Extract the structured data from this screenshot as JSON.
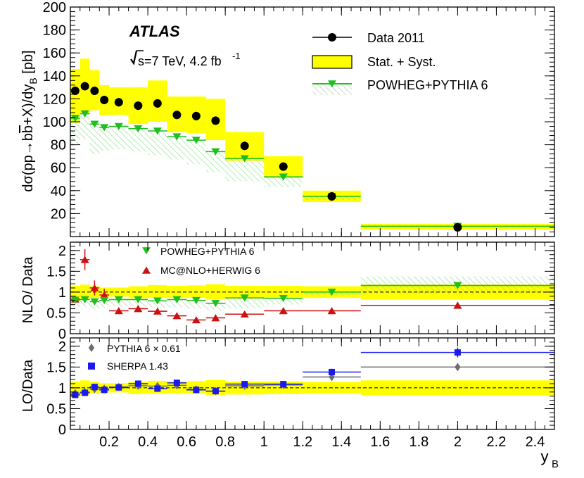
{
  "chart_data": {
    "type": "scatter",
    "x_axis": {
      "label": "y",
      "label_sub": "B",
      "range": [
        0,
        2.5
      ],
      "ticks": [
        0.2,
        0.4,
        0.6,
        0.8,
        1,
        1.2,
        1.4,
        1.6,
        1.8,
        2,
        2.2,
        2.4
      ],
      "tick_labels": [
        "0.2",
        "0.4",
        "0.6",
        "0.8",
        "1",
        "1.2",
        "1.4",
        "1.6",
        "1.8",
        "2",
        "2.2",
        "2.4"
      ]
    },
    "bins": [
      [
        0,
        0.05
      ],
      [
        0.05,
        0.1
      ],
      [
        0.1,
        0.15
      ],
      [
        0.15,
        0.2
      ],
      [
        0.2,
        0.3
      ],
      [
        0.3,
        0.4
      ],
      [
        0.4,
        0.5
      ],
      [
        0.5,
        0.6
      ],
      [
        0.6,
        0.7
      ],
      [
        0.7,
        0.8
      ],
      [
        0.8,
        1.0
      ],
      [
        1.0,
        1.2
      ],
      [
        1.2,
        1.5
      ],
      [
        1.5,
        2.5
      ]
    ],
    "panels": [
      {
        "id": "main",
        "ylabel": "dσ(pp→bb̄+X)/dy [pb]",
        "ylabel_parts": [
          "dσ(pp→b",
          "b",
          "+X)/dy",
          "B",
          " [pb]"
        ],
        "ylim": [
          0,
          200
        ],
        "yticks": [
          20,
          40,
          60,
          80,
          100,
          120,
          140,
          160,
          180,
          200
        ],
        "ytick_labels": [
          "20",
          "40",
          "60",
          "80",
          "100",
          "120",
          "140",
          "160",
          "180",
          "200"
        ],
        "experiment": "ATLAS",
        "energy_label": "s=7 TeV, 4.2 fb",
        "energy_sup": "-1",
        "legend": [
          "Data 2011",
          "Stat. + Syst.",
          "POWHEG+PYTHIA 6"
        ],
        "data": [
          127,
          131,
          127,
          119,
          117,
          114,
          116,
          106,
          105,
          101,
          79,
          61,
          35,
          8
        ],
        "band_low": [
          99,
          107,
          110,
          106,
          106,
          98,
          100,
          91,
          90,
          84,
          66,
          51,
          30,
          6
        ],
        "band_high": [
          146,
          155,
          145,
          132,
          130,
          130,
          136,
          122,
          122,
          120,
          91,
          70,
          40,
          11
        ],
        "powheg": [
          103,
          107,
          98,
          95,
          96,
          94,
          92,
          87,
          84,
          74,
          68,
          52,
          35,
          9
        ],
        "powheg_low": [
          80,
          85,
          72,
          75,
          76,
          74,
          71,
          67,
          63,
          56,
          48,
          43,
          32,
          8
        ],
        "powheg_high": [
          104,
          108,
          100,
          97,
          97,
          95,
          93,
          88,
          85,
          75,
          69,
          53,
          36,
          10
        ]
      },
      {
        "id": "nlo",
        "ylabel": "NLO/ Data",
        "ylim": [
          0,
          2.2
        ],
        "yticks": [
          0,
          0.5,
          1,
          1.5,
          2
        ],
        "ytick_labels": [
          "0",
          "0.5",
          "1",
          "1.5",
          "2"
        ],
        "legend": [
          "POWHEG+PYTHIA 6",
          "MC@NLO+HERWIG 6"
        ],
        "band_low": [
          0.78,
          0.82,
          0.86,
          0.89,
          0.89,
          0.85,
          0.86,
          0.86,
          0.86,
          0.83,
          0.84,
          0.85,
          0.86,
          0.82
        ],
        "band_high": [
          1.15,
          1.18,
          1.14,
          1.11,
          1.11,
          1.14,
          1.17,
          1.15,
          1.16,
          1.19,
          1.15,
          1.15,
          1.14,
          1.18
        ],
        "powheg": [
          0.81,
          0.82,
          0.77,
          0.8,
          0.82,
          0.82,
          0.79,
          0.82,
          0.8,
          0.73,
          0.86,
          0.85,
          1.0,
          1.16
        ],
        "powheg_low": [
          0.62,
          0.65,
          0.57,
          0.63,
          0.65,
          0.65,
          0.61,
          0.63,
          0.6,
          0.56,
          0.61,
          0.7,
          0.92,
          0.96
        ],
        "powheg_high": [
          0.82,
          0.83,
          0.79,
          0.82,
          0.83,
          0.84,
          0.81,
          0.84,
          0.82,
          0.75,
          0.88,
          0.87,
          1.02,
          1.38
        ],
        "mcnlo": [
          0.83,
          1.78,
          1.1,
          0.93,
          0.55,
          0.6,
          0.54,
          0.43,
          0.33,
          0.38,
          0.47,
          0.55,
          0.55,
          0.68
        ],
        "mcnlo_err": [
          0.08,
          0.25,
          0.18,
          0.15,
          0.08,
          0.08,
          0.07,
          0.06,
          0.05,
          0.06,
          0.05,
          0.05,
          0.04,
          0.06
        ]
      },
      {
        "id": "lo",
        "ylabel": "LO/Data",
        "ylim": [
          0,
          2.2
        ],
        "yticks": [
          0,
          0.5,
          1,
          1.5,
          2
        ],
        "ytick_labels": [
          "0",
          "0.5",
          "1",
          "1.5",
          "2"
        ],
        "legend": [
          "PYTHIA 6 × 0.61",
          "SHERPA 1.43"
        ],
        "band_low": [
          0.78,
          0.82,
          0.86,
          0.89,
          0.89,
          0.85,
          0.86,
          0.86,
          0.86,
          0.83,
          0.84,
          0.85,
          0.86,
          0.82
        ],
        "band_high": [
          1.15,
          1.18,
          1.14,
          1.11,
          1.11,
          1.14,
          1.17,
          1.15,
          1.16,
          1.19,
          1.15,
          1.15,
          1.14,
          1.18
        ],
        "pythia": [
          0.87,
          0.9,
          0.97,
          0.98,
          1.02,
          1.05,
          1.04,
          1.06,
          0.96,
          0.92,
          1.05,
          1.07,
          1.26,
          1.5
        ],
        "pythia_err": [
          0.05,
          0.05,
          0.05,
          0.05,
          0.04,
          0.04,
          0.04,
          0.04,
          0.04,
          0.04,
          0.04,
          0.04,
          0.04,
          0.04
        ],
        "sherpa": [
          0.83,
          0.88,
          1.02,
          0.95,
          1.01,
          1.1,
          0.98,
          1.12,
          0.95,
          0.92,
          1.09,
          1.09,
          1.38,
          1.85
        ],
        "sherpa_err": [
          0.08,
          0.08,
          0.08,
          0.08,
          0.06,
          0.07,
          0.07,
          0.07,
          0.06,
          0.06,
          0.06,
          0.06,
          0.08,
          0.12
        ]
      }
    ],
    "colors": {
      "data": "#000000",
      "band": "#ffff00",
      "powheg": "#1fbf1f",
      "powheg_hatch": "#86d986",
      "mcnlo": "#cc1111",
      "pythia": "#6e6e6e",
      "sherpa": "#1a1aee",
      "axis": "#000000"
    }
  }
}
